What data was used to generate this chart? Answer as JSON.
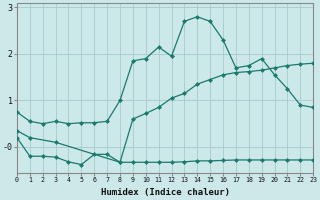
{
  "bg_color": "#cce8e8",
  "grid_color": "#aacfcf",
  "line_color": "#1a7a6e",
  "xlabel": "Humidex (Indice chaleur)",
  "xlim": [
    0,
    23
  ],
  "ylim": [
    -0.55,
    3.1
  ],
  "yticks": [
    3,
    2,
    1,
    0
  ],
  "ytick_labels": [
    "3",
    "2",
    "1",
    "-0"
  ],
  "xticks": [
    0,
    1,
    2,
    3,
    4,
    5,
    6,
    7,
    8,
    9,
    10,
    11,
    12,
    13,
    14,
    15,
    16,
    17,
    18,
    19,
    20,
    21,
    22,
    23
  ],
  "line1_x": [
    0,
    1,
    2,
    3,
    4,
    5,
    6,
    7,
    8,
    9,
    10,
    11,
    12,
    13,
    14,
    15,
    16,
    17,
    18,
    19,
    20,
    21,
    22,
    23
  ],
  "line1_y": [
    0.75,
    0.55,
    0.5,
    0.55,
    0.5,
    0.52,
    0.52,
    0.55,
    1.0,
    1.85,
    1.9,
    2.15,
    1.95,
    2.7,
    2.8,
    2.7,
    2.3,
    1.7,
    1.75,
    1.9,
    1.55,
    1.25,
    0.9,
    0.85
  ],
  "line2_x": [
    0,
    1,
    3,
    8,
    9,
    10,
    11,
    12,
    13,
    14,
    15,
    16,
    17,
    18,
    19,
    20,
    21,
    22,
    23
  ],
  "line2_y": [
    0.35,
    0.2,
    0.1,
    -0.33,
    0.6,
    0.72,
    0.85,
    1.05,
    1.15,
    1.35,
    1.45,
    1.55,
    1.6,
    1.62,
    1.65,
    1.7,
    1.75,
    1.78,
    1.8
  ],
  "line3_x": [
    0,
    1,
    2,
    3,
    4,
    5,
    6,
    7,
    8,
    9,
    10,
    11,
    12,
    13,
    14,
    15,
    16,
    17,
    18,
    19,
    20,
    21,
    22,
    23
  ],
  "line3_y": [
    0.2,
    -0.2,
    -0.2,
    -0.22,
    -0.32,
    -0.38,
    -0.16,
    -0.16,
    -0.33,
    -0.33,
    -0.33,
    -0.33,
    -0.33,
    -0.32,
    -0.3,
    -0.3,
    -0.29,
    -0.28,
    -0.28,
    -0.28,
    -0.28,
    -0.28,
    -0.28,
    -0.28
  ]
}
